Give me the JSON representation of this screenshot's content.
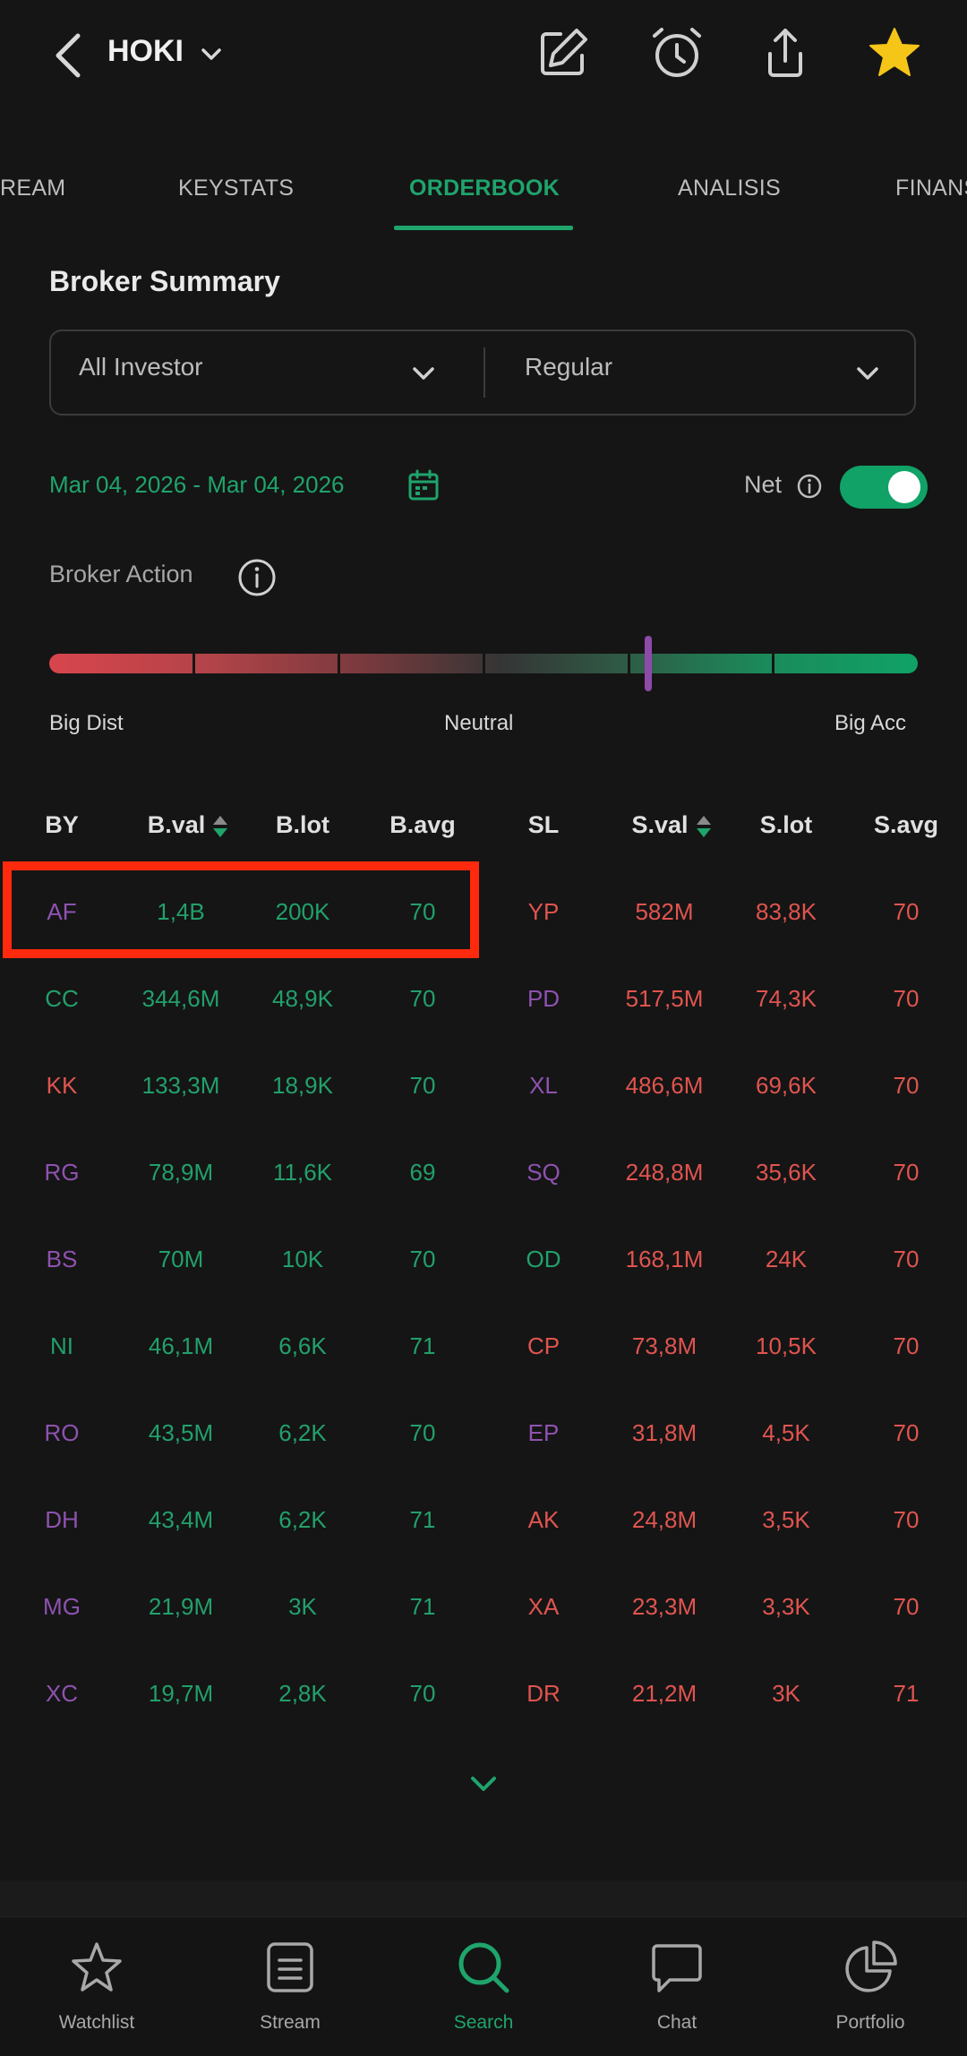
{
  "header": {
    "stock_code": "HOKI"
  },
  "tabs": [
    {
      "label": "REAM"
    },
    {
      "label": "KEYSTATS"
    },
    {
      "label": "ORDERBOOK"
    },
    {
      "label": "ANALISIS"
    },
    {
      "label": "FINANS"
    }
  ],
  "broker_summary": {
    "title": "Broker Summary",
    "investor_filter": "All Investor",
    "market_filter": "Regular",
    "date_range": "Mar 04, 2026 - Mar 04, 2026",
    "net_label": "Net",
    "net_enabled": true
  },
  "broker_action": {
    "label": "Broker Action",
    "left_label": "Big Dist",
    "center_label": "Neutral",
    "right_label": "Big Acc",
    "level_fraction": 0.69
  },
  "table": {
    "headers": [
      "BY",
      "B.val",
      "B.lot",
      "B.avg",
      "SL",
      "S.val",
      "S.lot",
      "S.avg"
    ],
    "rows": [
      {
        "by": "AF",
        "by_color": "purple",
        "bval": "1,4B",
        "blot": "200K",
        "bavg": "70",
        "sl": "YP",
        "sl_color": "red",
        "sval": "582M",
        "slot": "83,8K",
        "savg": "70"
      },
      {
        "by": "CC",
        "by_color": "green",
        "bval": "344,6M",
        "blot": "48,9K",
        "bavg": "70",
        "sl": "PD",
        "sl_color": "purple",
        "sval": "517,5M",
        "slot": "74,3K",
        "savg": "70"
      },
      {
        "by": "KK",
        "by_color": "red",
        "bval": "133,3M",
        "blot": "18,9K",
        "bavg": "70",
        "sl": "XL",
        "sl_color": "purple",
        "sval": "486,6M",
        "slot": "69,6K",
        "savg": "70"
      },
      {
        "by": "RG",
        "by_color": "purple",
        "bval": "78,9M",
        "blot": "11,6K",
        "bavg": "69",
        "sl": "SQ",
        "sl_color": "purple",
        "sval": "248,8M",
        "slot": "35,6K",
        "savg": "70"
      },
      {
        "by": "BS",
        "by_color": "purple",
        "bval": "70M",
        "blot": "10K",
        "bavg": "70",
        "sl": "OD",
        "sl_color": "green",
        "sval": "168,1M",
        "slot": "24K",
        "savg": "70"
      },
      {
        "by": "NI",
        "by_color": "green",
        "bval": "46,1M",
        "blot": "6,6K",
        "bavg": "71",
        "sl": "CP",
        "sl_color": "red",
        "sval": "73,8M",
        "slot": "10,5K",
        "savg": "70"
      },
      {
        "by": "RO",
        "by_color": "purple",
        "bval": "43,5M",
        "blot": "6,2K",
        "bavg": "70",
        "sl": "EP",
        "sl_color": "purple",
        "sval": "31,8M",
        "slot": "4,5K",
        "savg": "70"
      },
      {
        "by": "DH",
        "by_color": "purple",
        "bval": "43,4M",
        "blot": "6,2K",
        "bavg": "71",
        "sl": "AK",
        "sl_color": "red",
        "sval": "24,8M",
        "slot": "3,5K",
        "savg": "70"
      },
      {
        "by": "MG",
        "by_color": "purple",
        "bval": "21,9M",
        "blot": "3K",
        "bavg": "71",
        "sl": "XA",
        "sl_color": "red",
        "sval": "23,3M",
        "slot": "3,3K",
        "savg": "70"
      },
      {
        "by": "XC",
        "by_color": "purple",
        "bval": "19,7M",
        "blot": "2,8K",
        "bavg": "70",
        "sl": "DR",
        "sl_color": "red",
        "sval": "21,2M",
        "slot": "3K",
        "savg": "71"
      }
    ]
  },
  "bottom_nav": [
    {
      "label": "Watchlist",
      "icon": "star-outline-icon"
    },
    {
      "label": "Stream",
      "icon": "document-icon"
    },
    {
      "label": "Search",
      "icon": "search-icon"
    },
    {
      "label": "Chat",
      "icon": "chat-bubble-icon"
    },
    {
      "label": "Portfolio",
      "icon": "pie-chart-icon"
    }
  ],
  "colors": {
    "accent_green": "#1fa46c",
    "red": "#e0544f",
    "purple": "#8e52b0",
    "highlight": "#ff2a0e",
    "star": "#f5c518"
  }
}
